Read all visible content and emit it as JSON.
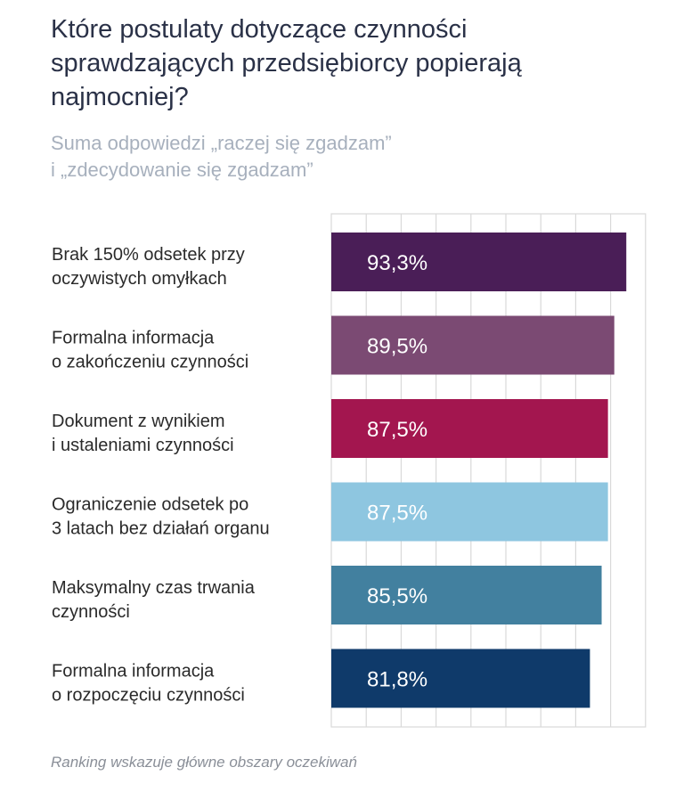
{
  "chart_data": {
    "type": "bar",
    "orientation": "horizontal",
    "title": "Które postulaty dotyczące czynności sprawdzających przedsiębiorcy popierają najmocniej?",
    "subtitle_lines": [
      "Suma odpowiedzi „raczej się zgadzam”",
      "i „zdecydowanie się zgadzam”"
    ],
    "categories": [
      [
        "Brak 150% odsetek przy",
        "oczywistych omyłkach"
      ],
      [
        "Formalna informacja",
        "o zakończeniu czynności"
      ],
      [
        "Dokument z wynikiem",
        "i ustaleniami czynności"
      ],
      [
        "Ograniczenie odsetek po",
        "3 latach bez działań organu"
      ],
      [
        "Maksymalny czas trwania",
        "czynności"
      ],
      [
        "Formalna informacja",
        "o rozpoczęciu czynności"
      ]
    ],
    "values": [
      93.3,
      89.5,
      87.5,
      87.5,
      85.5,
      81.8
    ],
    "value_labels": [
      "93,3%",
      "89,5%",
      "87,5%",
      "87,5%",
      "85,5%",
      "81,8%"
    ],
    "bar_colors": [
      "#4a1e57",
      "#7b4a73",
      "#a3164f",
      "#8ec6e0",
      "#42809f",
      "#0f3a6a"
    ],
    "xlim": [
      0,
      100
    ],
    "grid": true,
    "footnote": "Ranking wskazuje główne obszary oczekiwań"
  }
}
